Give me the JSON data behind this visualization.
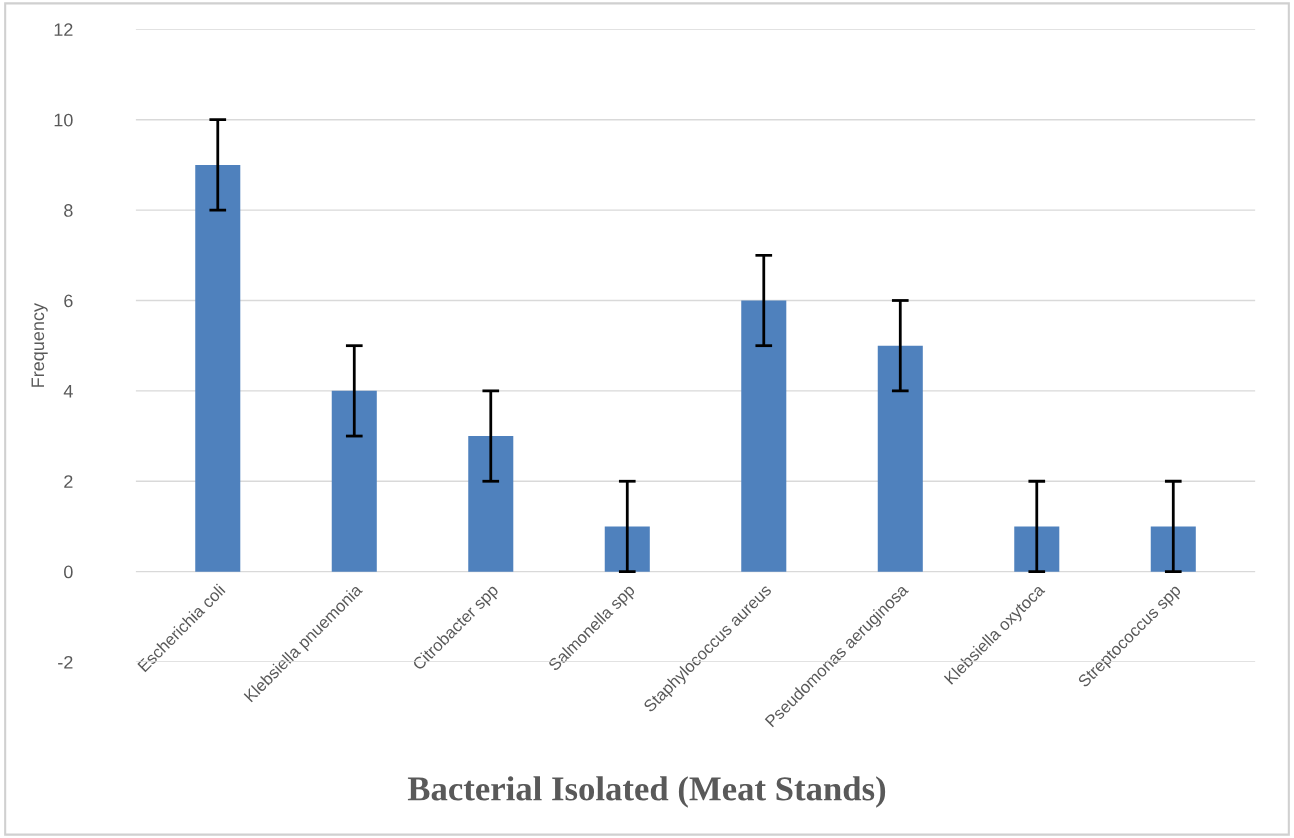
{
  "chart_data": {
    "type": "bar",
    "xlabel": "Bacterial Isolated (Meat Stands)",
    "ylabel": "Frequency",
    "categories": [
      "Escherichia coli",
      "Klebsiella pnuemonia",
      "Citrobacter spp",
      "Salmonella spp",
      "Staphylococcus aureus",
      "Pseudomonas aeruginosa",
      "Klebsiella oxytoca",
      "Streptococcus spp"
    ],
    "values": [
      9,
      4,
      3,
      1,
      6,
      5,
      1,
      1
    ],
    "errors": [
      1,
      1,
      1,
      1,
      1,
      1,
      1,
      1
    ],
    "color": "#4f81bd",
    "ylim": [
      -2,
      12
    ],
    "yticks": [
      -2,
      0,
      2,
      4,
      6,
      8,
      10,
      12
    ],
    "grid": "y"
  }
}
